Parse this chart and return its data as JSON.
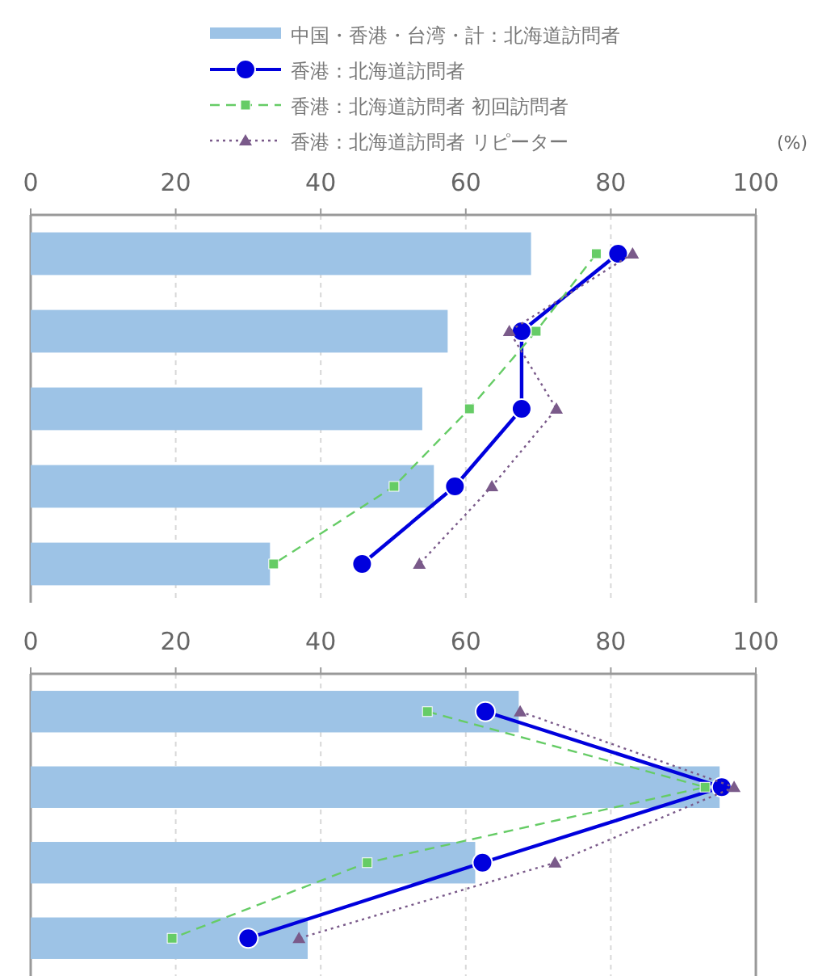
{
  "chart_data": [
    {
      "type": "bar",
      "orientation": "horizontal",
      "xlabel": "(%)",
      "categories": [
        null,
        null,
        null,
        null,
        null
      ],
      "xlim": [
        0,
        100
      ],
      "xticks": [
        0,
        20,
        40,
        60,
        80,
        100
      ],
      "grid": "x",
      "legend": "top",
      "series": [
        {
          "name": "中国・香港・台湾・計：北海道訪問者",
          "color": "#9dc3e6",
          "values": [
            69,
            57.5,
            54,
            55.6,
            33
          ]
        },
        {
          "name": "香港：北海道訪問者",
          "type": "line",
          "color": "#0000dd",
          "marker": "circle",
          "line_style": "solid",
          "values": [
            81,
            67.7,
            67.7,
            58.5,
            45.7
          ]
        },
        {
          "name": "香港：北海道訪問者 初回訪問者",
          "type": "line",
          "color": "#66cc66",
          "marker": "square",
          "line_style": "dashed",
          "values": [
            78,
            69.7,
            60.5,
            50.1,
            33.5
          ]
        },
        {
          "name": "香港：北海道訪問者 リピーター",
          "type": "line",
          "color": "#7a5a8a",
          "marker": "triangle",
          "line_style": "dotted",
          "values": [
            83,
            66,
            72.5,
            63.6,
            53.6
          ]
        }
      ]
    },
    {
      "type": "bar",
      "orientation": "horizontal",
      "categories": [
        null,
        null,
        null,
        null
      ],
      "xlim": [
        0,
        100
      ],
      "xticks": [
        0,
        20,
        40,
        60,
        80,
        100
      ],
      "grid": "x",
      "series": [
        {
          "color": "#9dc3e6",
          "values": [
            67.3,
            95,
            61.3,
            38.2
          ]
        },
        {
          "type": "line",
          "color": "#0000dd",
          "marker": "circle",
          "line_style": "solid",
          "values": [
            62.7,
            95.3,
            62.3,
            30
          ]
        },
        {
          "type": "line",
          "color": "#66cc66",
          "marker": "square",
          "line_style": "dashed",
          "values": [
            54.7,
            93,
            46.4,
            19.5
          ]
        },
        {
          "type": "line",
          "color": "#7a5a8a",
          "marker": "triangle",
          "line_style": "dotted",
          "values": [
            67.5,
            97,
            72.3,
            37
          ]
        }
      ]
    }
  ]
}
